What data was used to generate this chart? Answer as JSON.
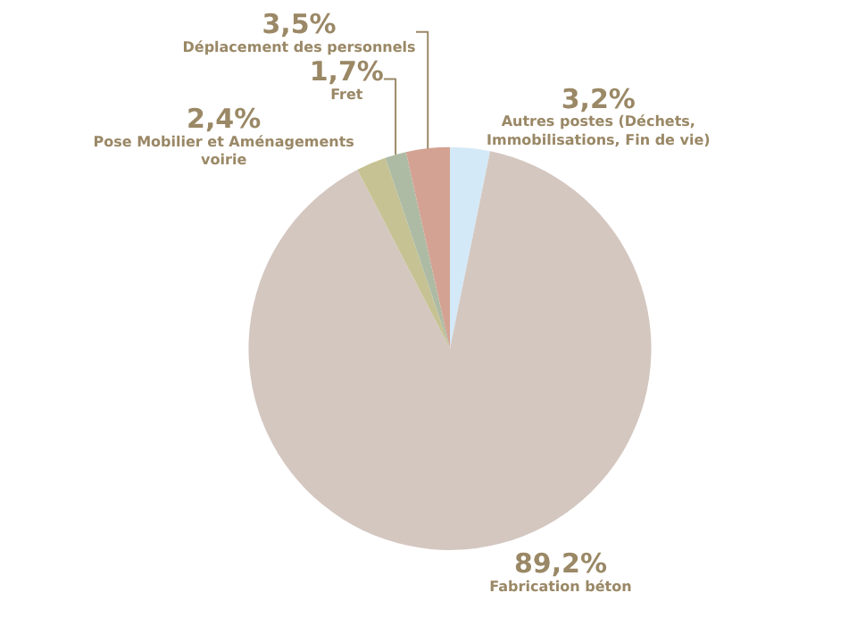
{
  "chart_data": {
    "type": "pie",
    "categories": [
      "Autres postes (Déchets, Immobilisations, Fin de vie)",
      "Fabrication béton",
      "Pose Mobilier et Aménagements voirie",
      "Fret",
      "Déplacement des personnels"
    ],
    "values": [
      3.2,
      89.2,
      2.4,
      1.7,
      3.5
    ],
    "value_labels": [
      "3,2%",
      "89,2%",
      "2,4%",
      "1,7%",
      "3,5%"
    ],
    "colors": [
      "#d4e9f7",
      "#d4c7c0",
      "#c6c293",
      "#aebba4",
      "#d3a292"
    ],
    "legend": false
  }
}
